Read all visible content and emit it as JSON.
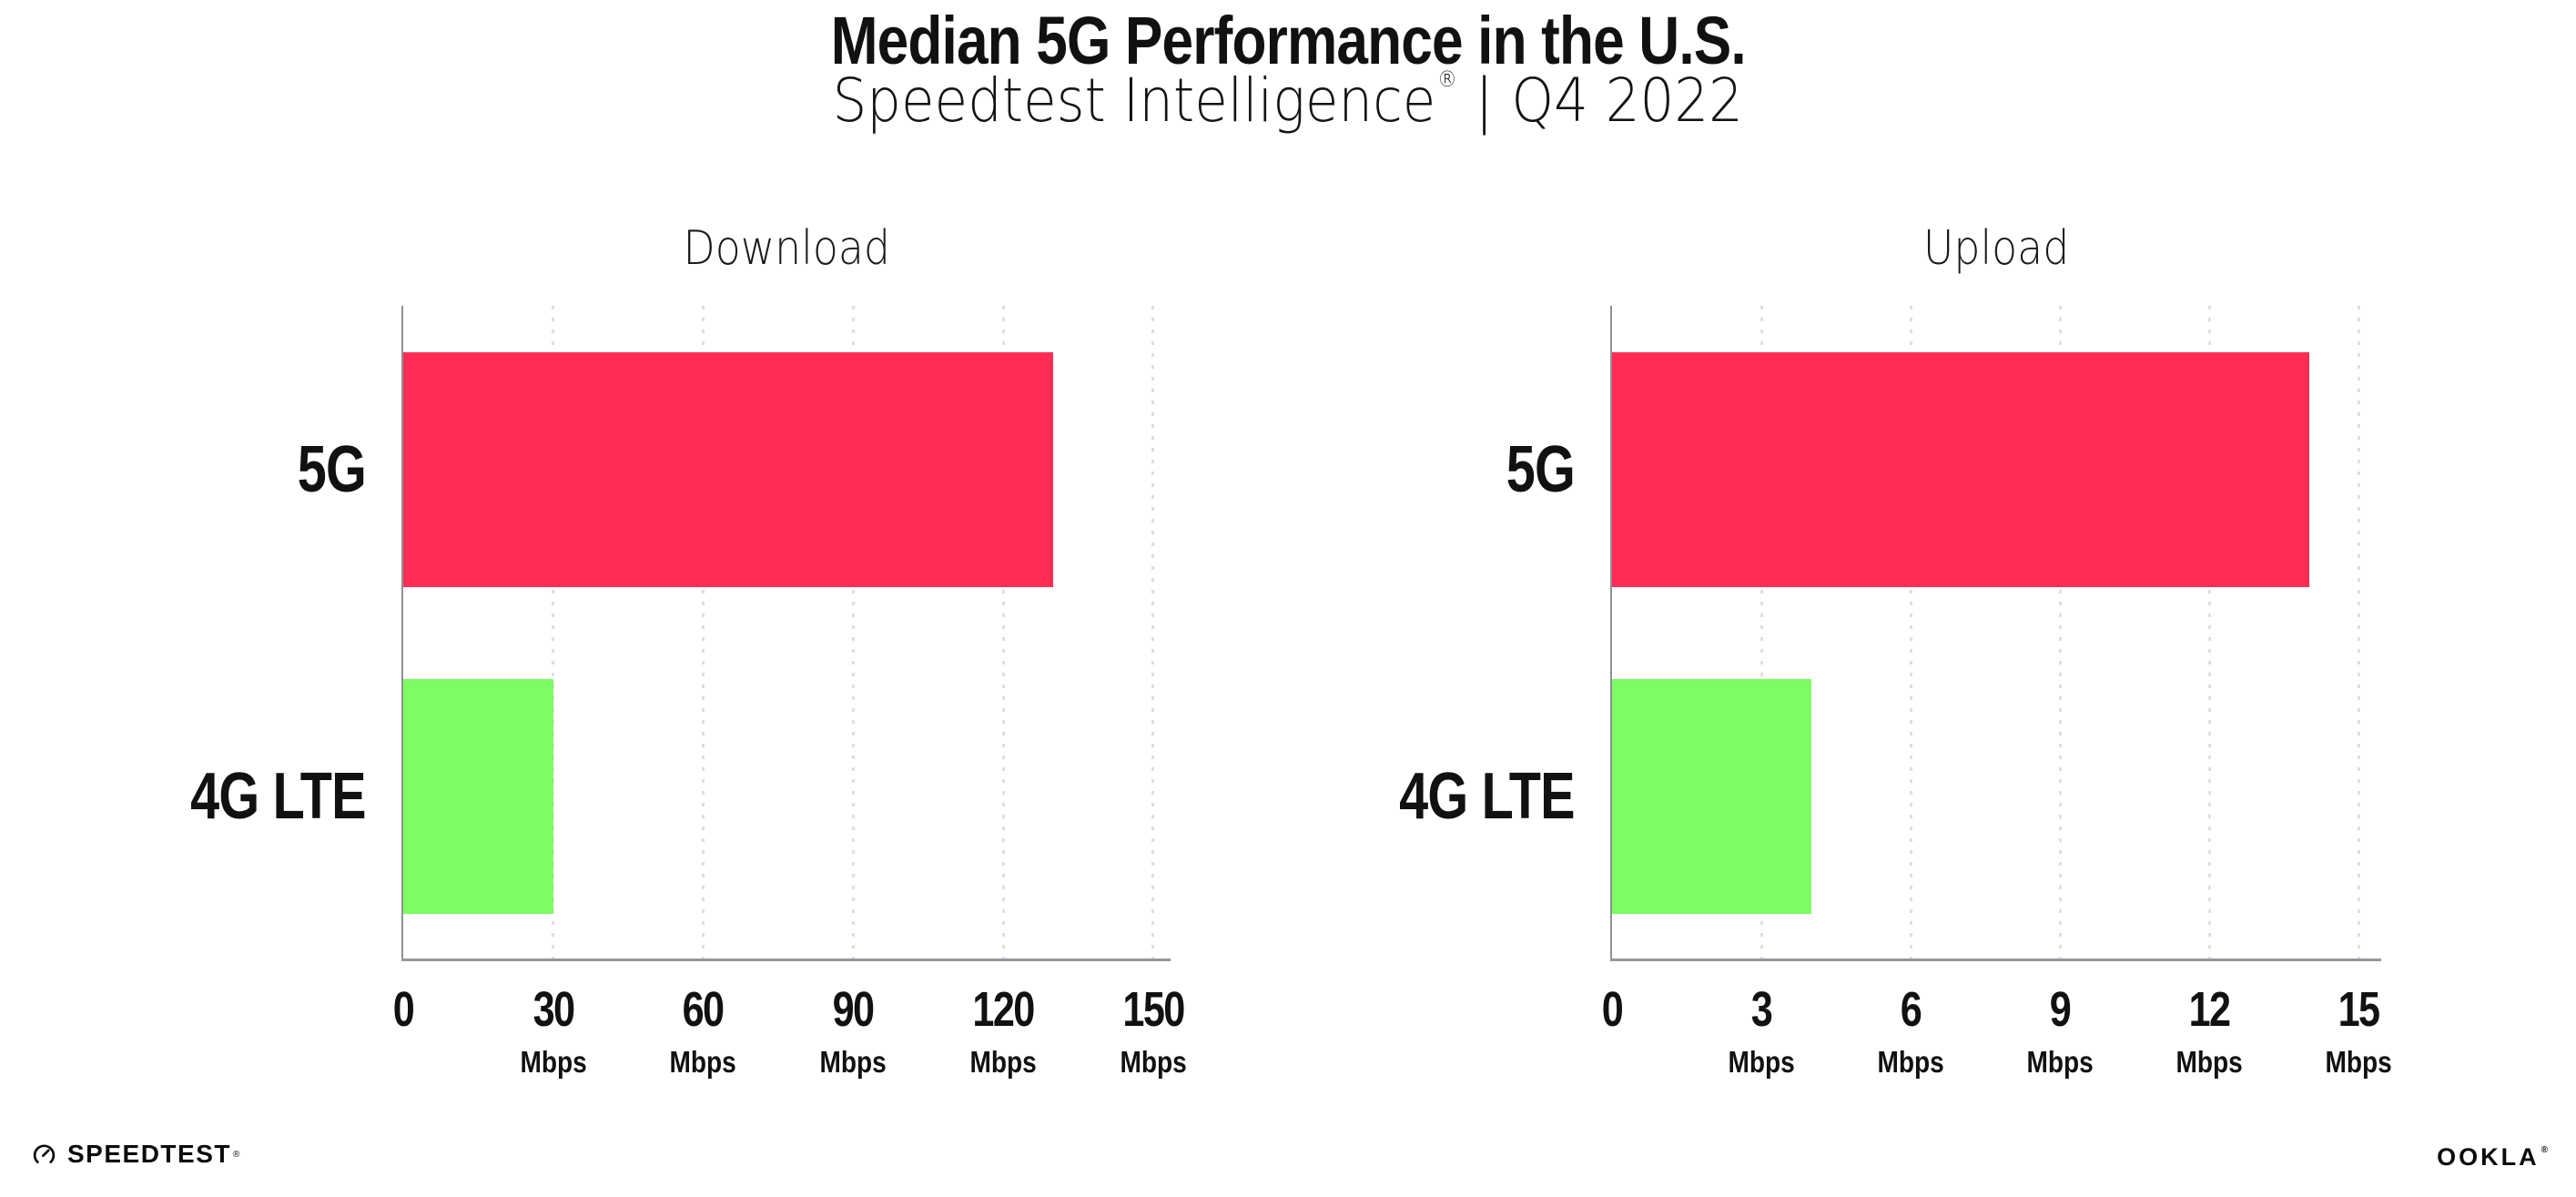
{
  "header": {
    "title": "Median 5G Performance in the U.S.",
    "subtitle": {
      "product": "Speedtest Intelligence",
      "reg_mark": "®",
      "separator": "|",
      "period": "Q4 2022"
    }
  },
  "chart_data": [
    {
      "type": "bar",
      "orientation": "horizontal",
      "title": "Download",
      "categories": [
        "5G",
        "4G LTE"
      ],
      "values": [
        130,
        30
      ],
      "unit": "Mbps",
      "xticks": [
        0,
        30,
        60,
        90,
        120,
        150
      ],
      "xlim": [
        0,
        153.5
      ],
      "grid": "dotted-vertical",
      "bar_colors": [
        "#FF2D55",
        "#7DFC64"
      ]
    },
    {
      "type": "bar",
      "orientation": "horizontal",
      "title": "Upload",
      "categories": [
        "5G",
        "4G LTE"
      ],
      "values": [
        14,
        4
      ],
      "unit": "Mbps",
      "xticks": [
        0,
        3,
        6,
        9,
        12,
        15
      ],
      "xlim": [
        0,
        15.45
      ],
      "grid": "dotted-vertical",
      "bar_colors": [
        "#FF2D55",
        "#7DFC64"
      ]
    }
  ],
  "colors": {
    "bar_5g": "#FF2D55",
    "bar_4g_lte": "#7DFC64",
    "gridline": "#DDDDE8",
    "axis_line": "#97979F",
    "spine": "#8F8F97",
    "text": "#111111"
  },
  "footer": {
    "speedtest": {
      "label": "SPEEDTEST",
      "mark": "®"
    },
    "ookla": {
      "label": "OOKLA",
      "mark": "®"
    }
  }
}
